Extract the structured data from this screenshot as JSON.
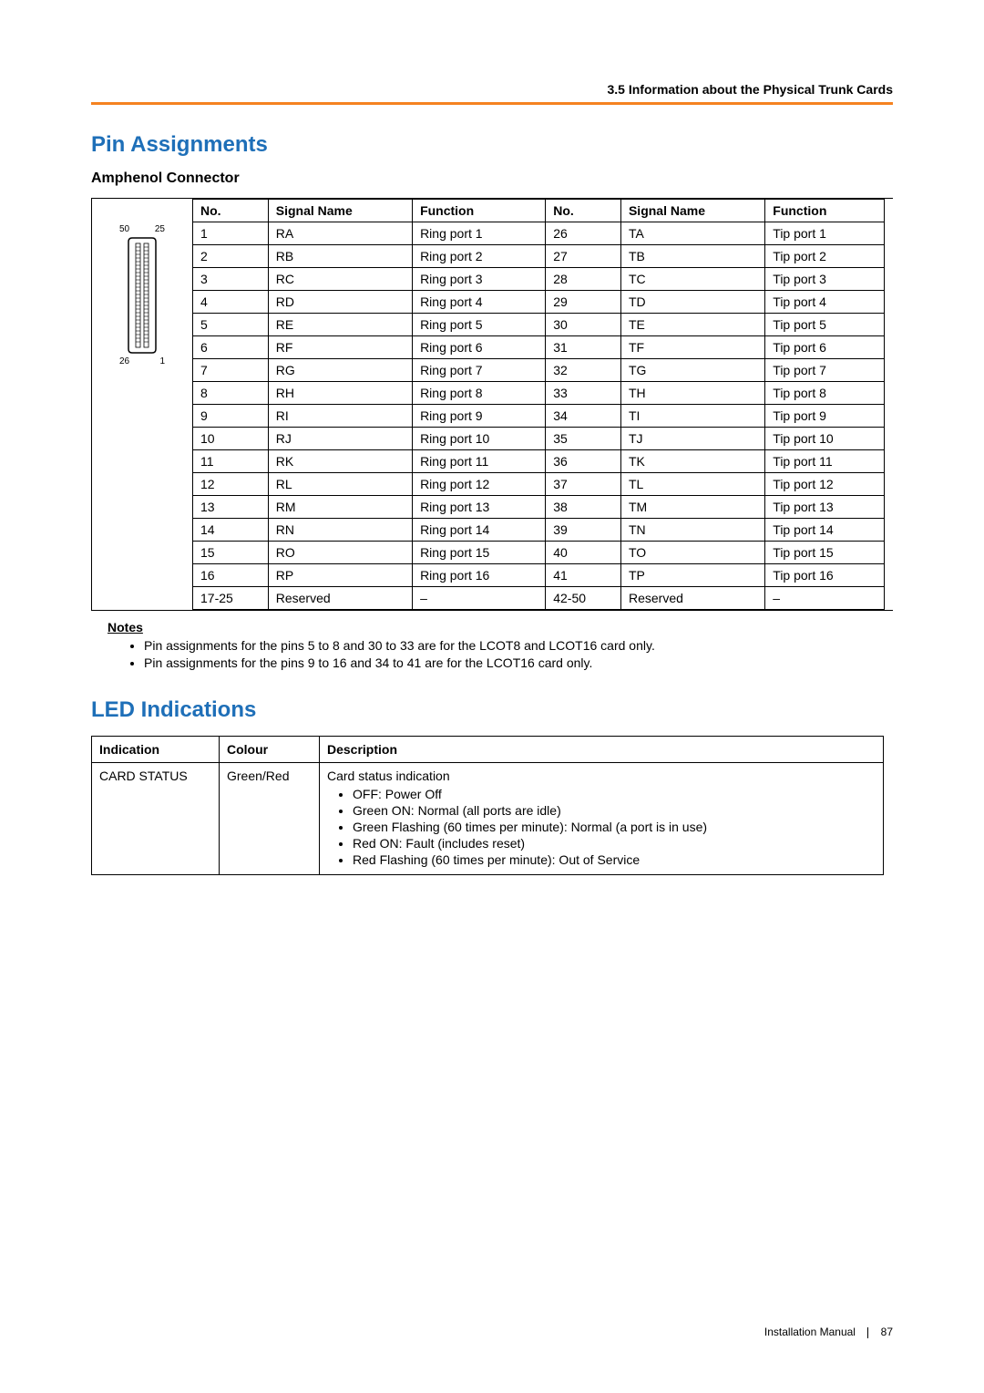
{
  "header": {
    "section_ref": "3.5 Information about the Physical Trunk Cards"
  },
  "colors": {
    "accent_orange": "#f58220",
    "heading_blue": "#1e6fb8",
    "text": "#000000",
    "bg": "#ffffff"
  },
  "pin_section": {
    "title": "Pin Assignments",
    "subtitle": "Amphenol Connector",
    "connector_labels": {
      "top_left": "50",
      "top_right": "25",
      "bottom_left": "26",
      "bottom_right": "1"
    },
    "columns": [
      "No.",
      "Signal Name",
      "Function",
      "No.",
      "Signal Name",
      "Function"
    ],
    "rows": [
      [
        "1",
        "RA",
        "Ring port 1",
        "26",
        "TA",
        "Tip port 1"
      ],
      [
        "2",
        "RB",
        "Ring port 2",
        "27",
        "TB",
        "Tip port 2"
      ],
      [
        "3",
        "RC",
        "Ring port 3",
        "28",
        "TC",
        "Tip port 3"
      ],
      [
        "4",
        "RD",
        "Ring port 4",
        "29",
        "TD",
        "Tip port 4"
      ],
      [
        "5",
        "RE",
        "Ring port 5",
        "30",
        "TE",
        "Tip port 5"
      ],
      [
        "6",
        "RF",
        "Ring port 6",
        "31",
        "TF",
        "Tip port 6"
      ],
      [
        "7",
        "RG",
        "Ring port 7",
        "32",
        "TG",
        "Tip port 7"
      ],
      [
        "8",
        "RH",
        "Ring port 8",
        "33",
        "TH",
        "Tip port 8"
      ],
      [
        "9",
        "RI",
        "Ring port 9",
        "34",
        "TI",
        "Tip port 9"
      ],
      [
        "10",
        "RJ",
        "Ring port 10",
        "35",
        "TJ",
        "Tip port 10"
      ],
      [
        "11",
        "RK",
        "Ring port 11",
        "36",
        "TK",
        "Tip port 11"
      ],
      [
        "12",
        "RL",
        "Ring port 12",
        "37",
        "TL",
        "Tip port 12"
      ],
      [
        "13",
        "RM",
        "Ring port 13",
        "38",
        "TM",
        "Tip port 13"
      ],
      [
        "14",
        "RN",
        "Ring port 14",
        "39",
        "TN",
        "Tip port 14"
      ],
      [
        "15",
        "RO",
        "Ring port 15",
        "40",
        "TO",
        "Tip port 15"
      ],
      [
        "16",
        "RP",
        "Ring port 16",
        "41",
        "TP",
        "Tip port 16"
      ],
      [
        "17-25",
        "Reserved",
        "–",
        "42-50",
        "Reserved",
        "–"
      ]
    ],
    "notes_label": "Notes",
    "notes": [
      "Pin assignments for the pins 5 to 8 and 30 to 33 are for the LCOT8 and LCOT16 card only.",
      "Pin assignments for the pins 9 to 16 and 34 to 41 are for the LCOT16 card only."
    ]
  },
  "led_section": {
    "title": "LED Indications",
    "columns": [
      "Indication",
      "Colour",
      "Description"
    ],
    "row": {
      "indication": "CARD STATUS",
      "colour": "Green/Red",
      "desc_lead": "Card status indication",
      "items": [
        "OFF: Power Off",
        "Green ON: Normal (all ports are idle)",
        "Green Flashing (60 times per minute): Normal (a port is in use)",
        "Red ON: Fault (includes reset)",
        "Red Flashing (60 times per minute): Out of Service"
      ]
    }
  },
  "footer": {
    "doc": "Installation Manual",
    "page": "87"
  }
}
